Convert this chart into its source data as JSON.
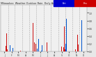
{
  "title": "Milwaukee Weather Outdoor Rain Daily Amount (Past/Previous Year)",
  "bg_color": "#e8e8e8",
  "plot_bg": "#f0f0f0",
  "num_days": 365,
  "bar_width": 0.4,
  "ylim": [
    0,
    1.2
  ],
  "yticks": [
    0.0,
    0.2,
    0.4,
    0.6,
    0.8,
    1.0
  ],
  "legend_blue": "#0000cc",
  "legend_red": "#cc0000",
  "grid_color": "#aaaaaa",
  "blue_color": "#0055cc",
  "red_color": "#cc1111"
}
